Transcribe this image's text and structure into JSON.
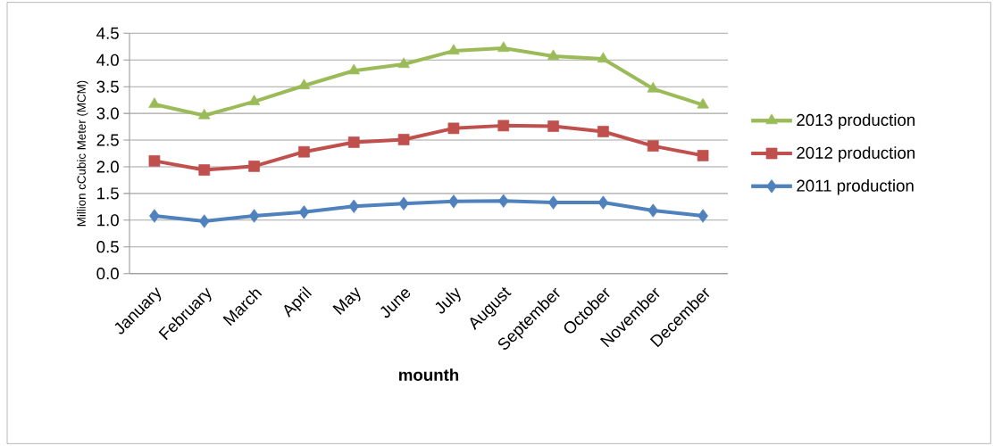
{
  "chart_data": {
    "type": "line",
    "xlabel": "mounth",
    "ylabel": "Million cCubic Meter (MCM)",
    "categories": [
      "January",
      "February",
      "March",
      "April",
      "May",
      "June",
      "July",
      "August",
      "September",
      "October",
      "November",
      "December"
    ],
    "series": [
      {
        "name": "2011 production",
        "color": "#4f81bd",
        "marker": "diamond",
        "values": [
          1.08,
          0.98,
          1.08,
          1.15,
          1.26,
          1.31,
          1.35,
          1.36,
          1.33,
          1.33,
          1.18,
          1.08
        ]
      },
      {
        "name": "2012 production",
        "color": "#c0504d",
        "marker": "square",
        "values": [
          2.11,
          1.94,
          2.01,
          2.28,
          2.46,
          2.51,
          2.72,
          2.77,
          2.76,
          2.66,
          2.39,
          2.21
        ]
      },
      {
        "name": "2013 production",
        "color": "#9bbb59",
        "marker": "triangle",
        "values": [
          3.17,
          2.96,
          3.22,
          3.52,
          3.8,
          3.92,
          4.17,
          4.22,
          4.07,
          4.02,
          3.46,
          3.16
        ]
      }
    ],
    "ylim": [
      0,
      4.5
    ],
    "yticks": [
      {
        "value": 0,
        "label": "0.0"
      },
      {
        "value": 0.5,
        "label": "0.5"
      },
      {
        "value": 1,
        "label": "1.0"
      },
      {
        "value": 1.5,
        "label": "1.5"
      },
      {
        "value": 2,
        "label": "2.0"
      },
      {
        "value": 2.5,
        "label": "2.5"
      },
      {
        "value": 3,
        "label": "3.0"
      },
      {
        "value": 3.5,
        "label": "3.5"
      },
      {
        "value": 4,
        "label": "4.0"
      },
      {
        "value": 4.5,
        "label": "4.5"
      }
    ],
    "grid": "y",
    "legend": "right",
    "line_style": "solid"
  }
}
